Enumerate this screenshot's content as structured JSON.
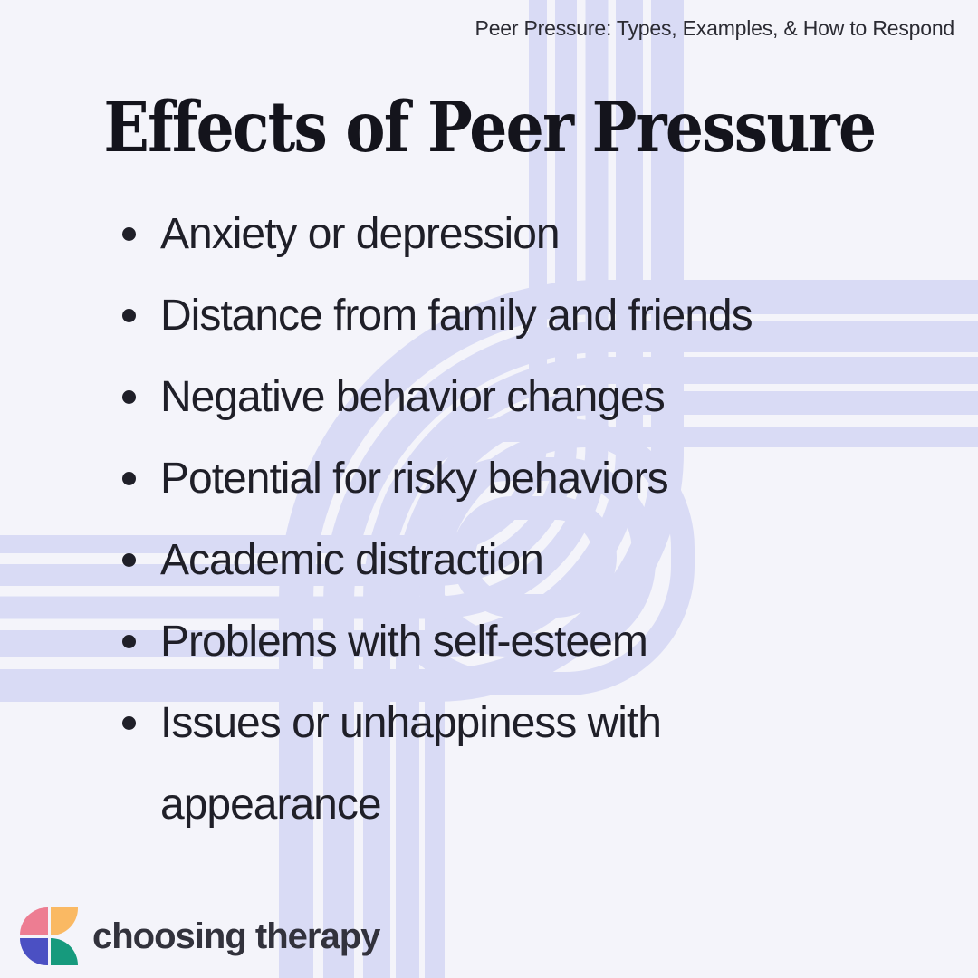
{
  "kicker": "Peer Pressure: Types, Examples, & How to Respond",
  "title": "Effects of Peer Pressure",
  "effects": [
    "Anxiety or depression",
    "Distance from family and friends",
    "Negative behavior changes",
    "Potential for risky behaviors",
    "Academic distraction",
    "Problems with self-esteem",
    "Issues or unhappiness with appearance"
  ],
  "brand": {
    "name": "choosing therapy",
    "logo_icon": "four-petal-logo-mark",
    "petal_colors": {
      "top_left": "#ed7d92",
      "top_right": "#fab963",
      "bottom_left": "#4b50c3",
      "bottom_right": "#169a7d"
    }
  },
  "colors": {
    "background": "#f4f4fa",
    "pattern_stripes": "#d9dbf5",
    "title_text": "#14141c",
    "body_text": "#1f1f28",
    "kicker_text": "#2b2b33",
    "brand_text": "#32323c"
  }
}
